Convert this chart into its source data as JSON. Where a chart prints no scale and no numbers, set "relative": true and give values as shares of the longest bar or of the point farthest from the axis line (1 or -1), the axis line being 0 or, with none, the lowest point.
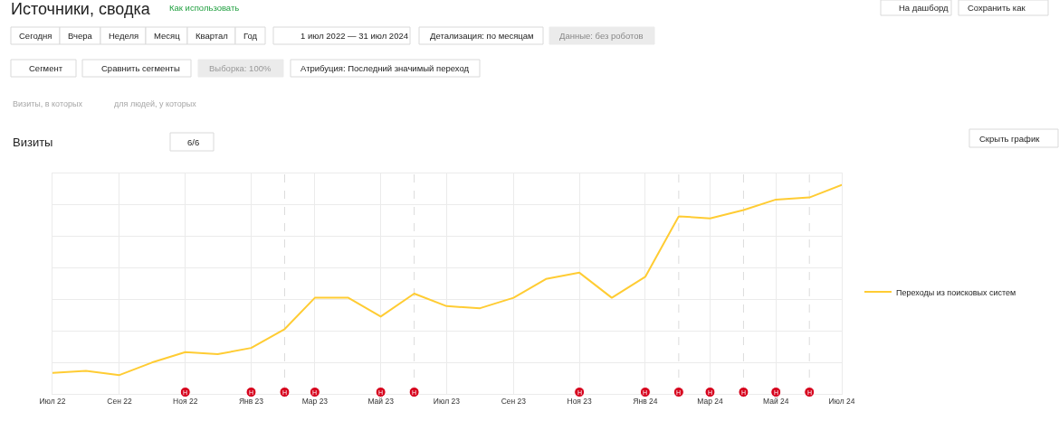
{
  "chart_data": {
    "type": "line",
    "title": "Источники, сводка",
    "annotations": [
      "Как использовать",
      "Сегодня",
      "Вчера",
      "Неделя",
      "Месяц",
      "Квартал",
      "Год",
      "1 июл 2022 — 31 июл 2024",
      "Детализация: по месяцам",
      "Данные: без роботов",
      "На дашборд",
      "Сохранить как",
      "Сегмент",
      "Сравнить сегменты",
      "Выборка: 100%",
      "Атрибуция: Последний значимый переход",
      "Визиты, в которых",
      "для людей, у которых",
      "Визиты",
      "6/6",
      "Скрыть график",
      {
        "text": "Н",
        "x": "2022-11"
      },
      {
        "text": "Н",
        "x": "2023-01"
      },
      {
        "text": "Н",
        "x": "2023-02"
      },
      {
        "text": "Н",
        "x": "2023-03"
      },
      {
        "text": "Н",
        "x": "2023-05"
      },
      {
        "text": "Н",
        "x": "2023-06"
      },
      {
        "text": "Н",
        "x": "2023-11"
      },
      {
        "text": "Н",
        "x": "2024-01"
      },
      {
        "text": "Н",
        "x": "2024-02"
      },
      {
        "text": "Н",
        "x": "2024-03"
      },
      {
        "text": "Н",
        "x": "2024-04"
      },
      {
        "text": "Н",
        "x": "2024-05"
      },
      {
        "text": "Н",
        "x": "2024-06"
      }
    ],
    "relative": true,
    "x": [
      "2022-07",
      "2022-08",
      "2022-09",
      "2022-10",
      "2022-11",
      "2022-12",
      "2023-01",
      "2023-02",
      "2023-03",
      "2023-04",
      "2023-05",
      "2023-06",
      "2023-07",
      "2023-08",
      "2023-09",
      "2023-10",
      "2023-11",
      "2023-12",
      "2024-01",
      "2024-02",
      "2024-03",
      "2024-04",
      "2024-05",
      "2024-06",
      "2024-07"
    ],
    "series": [
      {
        "name": "Переходы из поисковых систем",
        "color": "#ffcc33",
        "values": [
          0.1,
          0.11,
          0.09,
          0.15,
          0.2,
          0.19,
          0.22,
          0.31,
          0.46,
          0.46,
          0.37,
          0.48,
          0.42,
          0.41,
          0.46,
          0.55,
          0.58,
          0.46,
          0.56,
          0.85,
          0.84,
          0.88,
          0.93,
          0.94,
          1
        ]
      }
    ],
    "xlim": [
      "2022-07",
      "2024-07"
    ],
    "xticks": [
      {
        "value": "2022-07",
        "label": "Июл 22"
      },
      {
        "value": "2022-09",
        "label": "Сен 22"
      },
      {
        "value": "2022-11",
        "label": "Ноя 22"
      },
      {
        "value": "2023-01",
        "label": "Янв 23"
      },
      {
        "value": "2023-03",
        "label": "Мар 23"
      },
      {
        "value": "2023-05",
        "label": "Май 23"
      },
      {
        "value": "2023-07",
        "label": "Июл 23"
      },
      {
        "value": "2023-09",
        "label": "Сен 23"
      },
      {
        "value": "2023-11",
        "label": "Ноя 23"
      },
      {
        "value": "2024-01",
        "label": "Янв 24"
      },
      {
        "value": "2024-03",
        "label": "Мар 24"
      },
      {
        "value": "2024-05",
        "label": "Май 24"
      },
      {
        "value": "2024-07",
        "label": "Июл 24"
      }
    ],
    "ref_lines": [
      {
        "axis": "x",
        "value": "2023-02",
        "line_style": "dashed"
      },
      {
        "axis": "x",
        "value": "2023-06",
        "line_style": "dashed"
      },
      {
        "axis": "x",
        "value": "2024-02",
        "line_style": "dashed"
      },
      {
        "axis": "x",
        "value": "2024-04",
        "line_style": "dashed"
      },
      {
        "axis": "x",
        "value": "2024-06",
        "line_style": "dashed"
      }
    ],
    "grid": true,
    "legend": "right",
    "line_style": "solid"
  }
}
